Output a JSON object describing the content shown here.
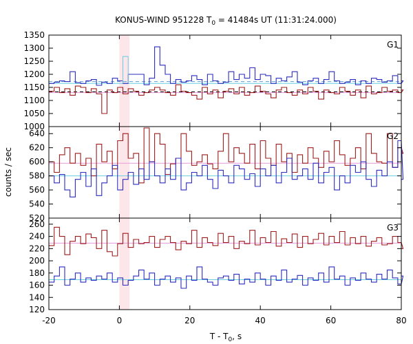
{
  "chart_data": {
    "type": "line",
    "title": "KONUS-WIND 951228 T",
    "title_sub": "0",
    "title_rest": " = 41484s UT (11:31:24.000)",
    "xlabel": "T - T",
    "xlabel_sub": "0",
    "xlabel_rest": ", s",
    "ylabel": "counts / sec",
    "xlim": [
      -20,
      80
    ],
    "x_ticks": [
      -20,
      0,
      20,
      40,
      60,
      80
    ],
    "x_tick_labels": [
      "-20",
      "0",
      "20",
      "40",
      "60",
      "80"
    ],
    "highlight_interval": [
      0,
      2.9
    ],
    "colors": {
      "blue": "#2b2bbf",
      "red": "#9e1b1b",
      "light_blue": "#66cfe0",
      "light_blue_dash": "#5a9fd0",
      "pink": "#e39ad8",
      "highlight": "#fde6ea"
    },
    "panels": [
      {
        "name": "G1",
        "ylim": [
          1000,
          1350
        ],
        "y_ticks": [
          1000,
          1050,
          1100,
          1150,
          1200,
          1250,
          1300,
          1350
        ],
        "bin_width": 0.736,
        "series": [
          {
            "color": "blue",
            "x_start": -20,
            "bin_width": 1.5,
            "values": [
              1165,
              1170,
              1175,
              1172,
              1210,
              1168,
              1165,
              1175,
              1180,
              1158,
              1170,
              1165,
              1185,
              1175,
              1165,
              1200,
              1200,
              1200,
              1160,
              1185,
              1305,
              1235,
              1200,
              1165,
              1180,
              1170,
              1175,
              1195,
              1180,
              1160,
              1200,
              1175,
              1165,
              1170,
              1210,
              1180,
              1200,
              1185,
              1225,
              1180,
              1200,
              1195,
              1165,
              1185,
              1175,
              1190,
              1210,
              1170,
              1160,
              1175,
              1185,
              1165,
              1180,
              1210,
              1175,
              1165,
              1170,
              1180,
              1160,
              1175,
              1165,
              1185,
              1180,
              1170,
              1175,
              1195,
              1165,
              1175
            ]
          },
          {
            "color": "red",
            "x_start": -20,
            "bin_width": 1.5,
            "values": [
              1135,
              1150,
              1130,
              1145,
              1120,
              1155,
              1150,
              1130,
              1145,
              1125,
              1050,
              1140,
              1130,
              1150,
              1125,
              1145,
              1135,
              1120,
              1130,
              1140,
              1150,
              1140,
              1130,
              1120,
              1160,
              1135,
              1130,
              1120,
              1105,
              1150,
              1125,
              1140,
              1110,
              1135,
              1145,
              1125,
              1150,
              1120,
              1130,
              1155,
              1135,
              1125,
              1110,
              1140,
              1150,
              1130,
              1120,
              1140,
              1125,
              1150,
              1135,
              1105,
              1140,
              1130,
              1125,
              1150,
              1135,
              1120,
              1140,
              1110,
              1155,
              1125,
              1130,
              1150,
              1135,
              1140,
              1130,
              1140
            ]
          }
        ],
        "ref_lines": [
          {
            "y": 1165,
            "color": "light_blue",
            "dashed": false
          },
          {
            "y": 1172,
            "color": "light_blue_dash",
            "dashed": true
          },
          {
            "y": 1130,
            "color": "pink",
            "dashed": false
          },
          {
            "y": 1133,
            "color": "#000000",
            "dashed": true
          }
        ],
        "extra_bins": [
          {
            "x": [
              1.0,
              2.5
            ],
            "y": 1268,
            "color": "light_blue"
          }
        ]
      },
      {
        "name": "G2",
        "ylim": [
          520,
          650
        ],
        "y_ticks": [
          520,
          540,
          560,
          580,
          600,
          620,
          640
        ],
        "series": [
          {
            "color": "red",
            "x_start": -20,
            "bin_width": 1.5,
            "values": [
              600,
              585,
              610,
              620,
              598,
              612,
              595,
              605,
              580,
              625,
              600,
              615,
              590,
              630,
              640,
              605,
              612,
              570,
              648,
              600,
              640,
              625,
              582,
              597,
              605,
              640,
              615,
              595,
              600,
              610,
              597,
              590,
              615,
              640,
              600,
              620,
              612,
              598,
              625,
              590,
              630,
              605,
              595,
              625,
              600,
              612,
              585,
              610,
              598,
              620,
              605,
              592,
              615,
              600,
              630,
              610,
              595,
              605,
              620,
              590,
              640,
              612,
              600,
              598,
              640,
              592,
              620,
              612
            ]
          },
          {
            "color": "blue",
            "x_start": -20,
            "bin_width": 1.5,
            "values": [
              580,
              570,
              582,
              560,
              550,
              575,
              585,
              565,
              590,
              552,
              570,
              580,
              595,
              560,
              575,
              585,
              568,
              590,
              575,
              600,
              580,
              570,
              590,
              575,
              605,
              560,
              570,
              585,
              580,
              595,
              575,
              562,
              588,
              580,
              570,
              595,
              590,
              575,
              583,
              565,
              590,
              580,
              595,
              570,
              585,
              605,
              575,
              580,
              590,
              575,
              598,
              570,
              585,
              592,
              560,
              580,
              570,
              595,
              585,
              600,
              575,
              565,
              588,
              580,
              600,
              592,
              630,
              575
            ]
          }
        ],
        "ref_lines": [
          {
            "y": 598,
            "color": "pink",
            "dashed": false
          },
          {
            "y": 580,
            "color": "light_blue",
            "dashed": false
          }
        ]
      },
      {
        "name": "G3",
        "ylim": [
          120,
          270
        ],
        "y_ticks": [
          120,
          140,
          160,
          180,
          200,
          220,
          240,
          260
        ],
        "series": [
          {
            "color": "red",
            "x_start": -20,
            "bin_width": 1.5,
            "values": [
              225,
              255,
              240,
              210,
              232,
              240,
              228,
              244,
              238,
              220,
              250,
              215,
              208,
              228,
              245,
              222,
              235,
              228,
              230,
              240,
              222,
              235,
              240,
              230,
              218,
              232,
              228,
              250,
              222,
              238,
              230,
              225,
              245,
              230,
              240,
              220,
              232,
              228,
              250,
              226,
              238,
              230,
              248,
              224,
              236,
              230,
              244,
              222,
              240,
              228,
              235,
              245,
              226,
              240,
              230,
              248,
              226,
              238,
              228,
              240,
              224,
              232,
              238,
              226,
              228,
              240,
              230,
              220
            ]
          },
          {
            "color": "blue",
            "x_start": -20,
            "bin_width": 1.5,
            "values": [
              165,
              175,
              190,
              160,
              170,
              180,
              165,
              172,
              168,
              175,
              170,
              180,
              165,
              172,
              160,
              168,
              175,
              185,
              170,
              180,
              160,
              170,
              175,
              165,
              172,
              155,
              175,
              168,
              190,
              170,
              165,
              160,
              172,
              175,
              168,
              178,
              162,
              170,
              165,
              180,
              170,
              160,
              175,
              168,
              185,
              165,
              170,
              176,
              160,
              172,
              168,
              180,
              165,
              190,
              170,
              175,
              160,
              172,
              168,
              180,
              170,
              165,
              178,
              170,
              185,
              172,
              162,
              175
            ]
          }
        ],
        "ref_lines": [
          {
            "y": 229,
            "color": "pink",
            "dashed": false
          },
          {
            "y": 169,
            "color": "light_blue",
            "dashed": false
          }
        ]
      }
    ]
  }
}
